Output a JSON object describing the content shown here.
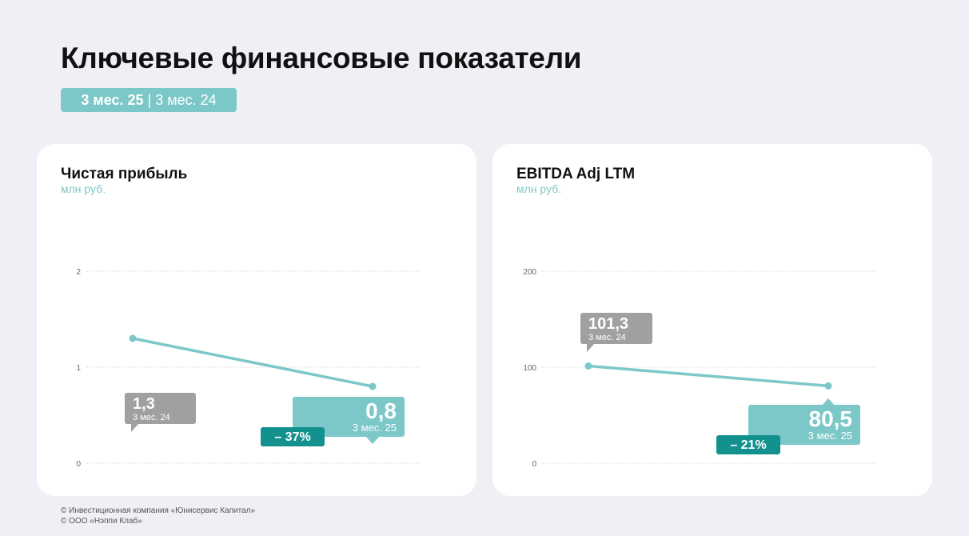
{
  "header": {
    "title": "Ключевые финансовые показатели",
    "period_current": "3 мес. 25",
    "period_separator": "|",
    "period_previous": "3 мес. 24"
  },
  "colors": {
    "accent": "#7cc8c8",
    "accent_dark": "#13918f",
    "previous": "#a0a0a0",
    "background": "#efeff5"
  },
  "chart_data": [
    {
      "type": "line",
      "title": "Чистая прибыль",
      "ylabel": "млн руб.",
      "ylim": [
        0,
        2
      ],
      "yticks": [
        0,
        1,
        2
      ],
      "ytick_labels": [
        "0",
        "1",
        "2"
      ],
      "grid": true,
      "points": [
        {
          "period": "3 мес. 24",
          "value": 1.3,
          "label": "1,3"
        },
        {
          "period": "3 мес. 25",
          "value": 0.8,
          "label": "0,8"
        }
      ],
      "change_label": "– 37%"
    },
    {
      "type": "line",
      "title": "EBITDA Adj LTM",
      "ylabel": "млн руб.",
      "ylim": [
        0,
        200
      ],
      "yticks": [
        0,
        100,
        200
      ],
      "ytick_labels": [
        "0",
        "100",
        "200"
      ],
      "grid": true,
      "points": [
        {
          "period": "3 мес. 24",
          "value": 101.3,
          "label": "101,3"
        },
        {
          "period": "3 мес. 25",
          "value": 80.5,
          "label": "80,5"
        }
      ],
      "change_label": "– 21%"
    }
  ],
  "footer": {
    "line1": "© Инвестиционная компания «Юнисервис Капитал»",
    "line2": "© ООО «Нэппи Клаб»"
  }
}
